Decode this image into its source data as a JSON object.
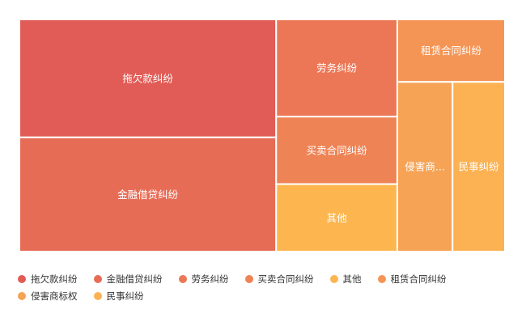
{
  "chart_data": {
    "type": "treemap",
    "legend_position": "bottom-left",
    "items": [
      {
        "name": "拖欠款纠纷",
        "label": "拖欠款纠纷",
        "value": 12.6,
        "color": "#e15c56"
      },
      {
        "name": "金融借贷纠纷",
        "label": "金融借贷纠纷",
        "value": 12.2,
        "color": "#e76c56"
      },
      {
        "name": "劳务纠纷",
        "label": "劳务纠纷",
        "value": 4.9,
        "color": "#ec7756"
      },
      {
        "name": "买卖合同纠纷",
        "label": "买卖合同纠纷",
        "value": 3.4,
        "color": "#ee8356"
      },
      {
        "name": "其他",
        "label": "其他",
        "value": 3.4,
        "color": "#fdb64f"
      },
      {
        "name": "租赁合同纠纷",
        "label": "租赁合同纠纷",
        "value": 2.8,
        "color": "#f49556"
      },
      {
        "name": "侵害商标权",
        "label": "侵害商...",
        "value": 3.9,
        "color": "#f6a356"
      },
      {
        "name": "民事纠纷",
        "label": "民事纠纷",
        "value": 3.7,
        "color": "#fcb253"
      }
    ]
  }
}
